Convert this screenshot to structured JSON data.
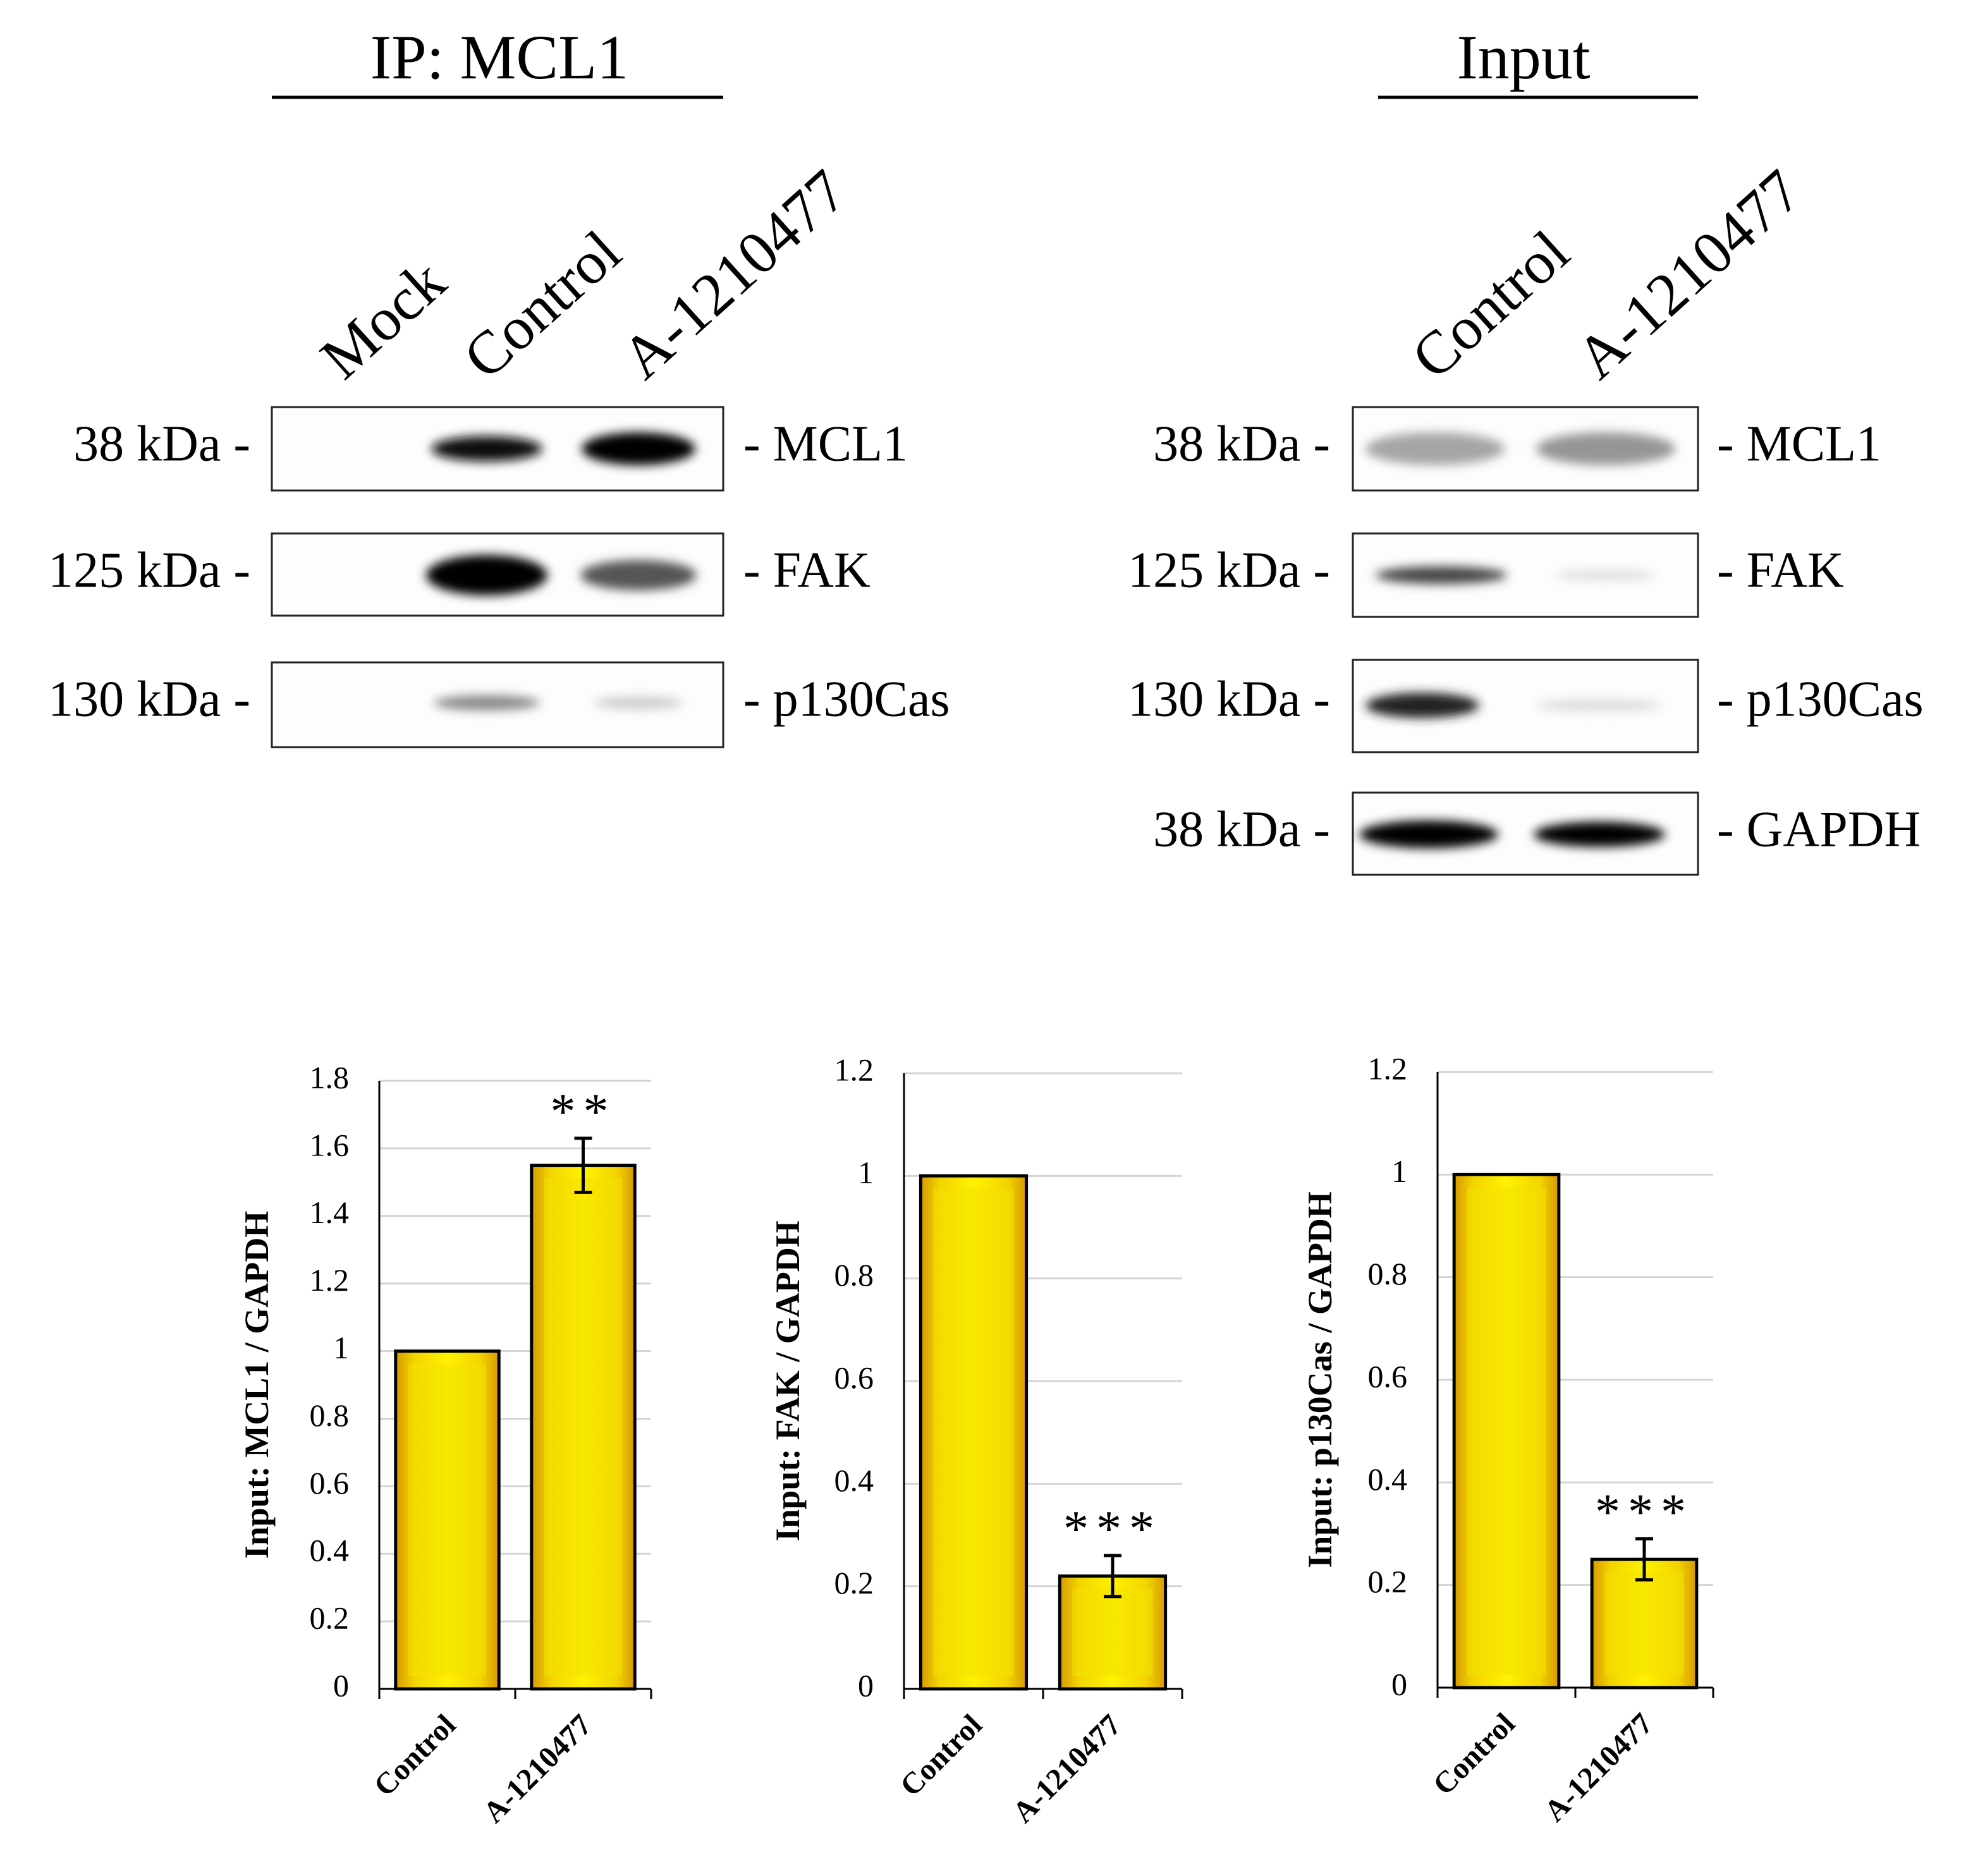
{
  "blots": [
    {
      "title": "IP: MCL1",
      "lanes": [
        "Mock",
        "Control",
        "A-1210477"
      ],
      "rows": [
        {
          "marker": "38 kDa -",
          "protein": "- MCL1"
        },
        {
          "marker": "125 kDa -",
          "protein": "- FAK"
        },
        {
          "marker": "130 kDa -",
          "protein": "- p130Cas"
        }
      ]
    },
    {
      "title": "Input",
      "lanes": [
        "Control",
        "A-1210477"
      ],
      "rows": [
        {
          "marker": "38 kDa -",
          "protein": "- MCL1"
        },
        {
          "marker": "125 kDa -",
          "protein": "- FAK"
        },
        {
          "marker": "130 kDa -",
          "protein": "- p130Cas"
        },
        {
          "marker": "38 kDa -",
          "protein": "- GAPDH"
        }
      ]
    }
  ],
  "chart_data": [
    {
      "type": "bar",
      "ylabel": "Input: MCL1 / GAPDH",
      "categories": [
        "Control",
        "A-1210477"
      ],
      "values": [
        1,
        1.55
      ],
      "errors": [
        0,
        0.08
      ],
      "annotation": "**",
      "annotation_index": 1,
      "ylim": [
        0,
        1.8
      ],
      "yticks": [
        0,
        0.2,
        0.4,
        0.6,
        0.8,
        1,
        1.2,
        1.4,
        1.6,
        1.8
      ],
      "grid": true,
      "color": "#f2e200"
    },
    {
      "type": "bar",
      "ylabel": "Input: FAK / GAPDH",
      "categories": [
        "Control",
        "A-1210477"
      ],
      "values": [
        1,
        0.22
      ],
      "errors": [
        0,
        0.04
      ],
      "annotation": "***",
      "annotation_index": 1,
      "ylim": [
        0,
        1.2
      ],
      "yticks": [
        0,
        0.2,
        0.4,
        0.6,
        0.8,
        1,
        1.2
      ],
      "grid": true,
      "color": "#f2e200"
    },
    {
      "type": "bar",
      "ylabel": "Input: p130Cas / GAPDH",
      "categories": [
        "Control",
        "A-1210477"
      ],
      "values": [
        1,
        0.25
      ],
      "errors": [
        0,
        0.04
      ],
      "annotation": "***",
      "annotation_index": 1,
      "ylim": [
        0,
        1.2
      ],
      "yticks": [
        0,
        0.2,
        0.4,
        0.6,
        0.8,
        1,
        1.2
      ],
      "grid": true,
      "color": "#f2e200"
    }
  ]
}
